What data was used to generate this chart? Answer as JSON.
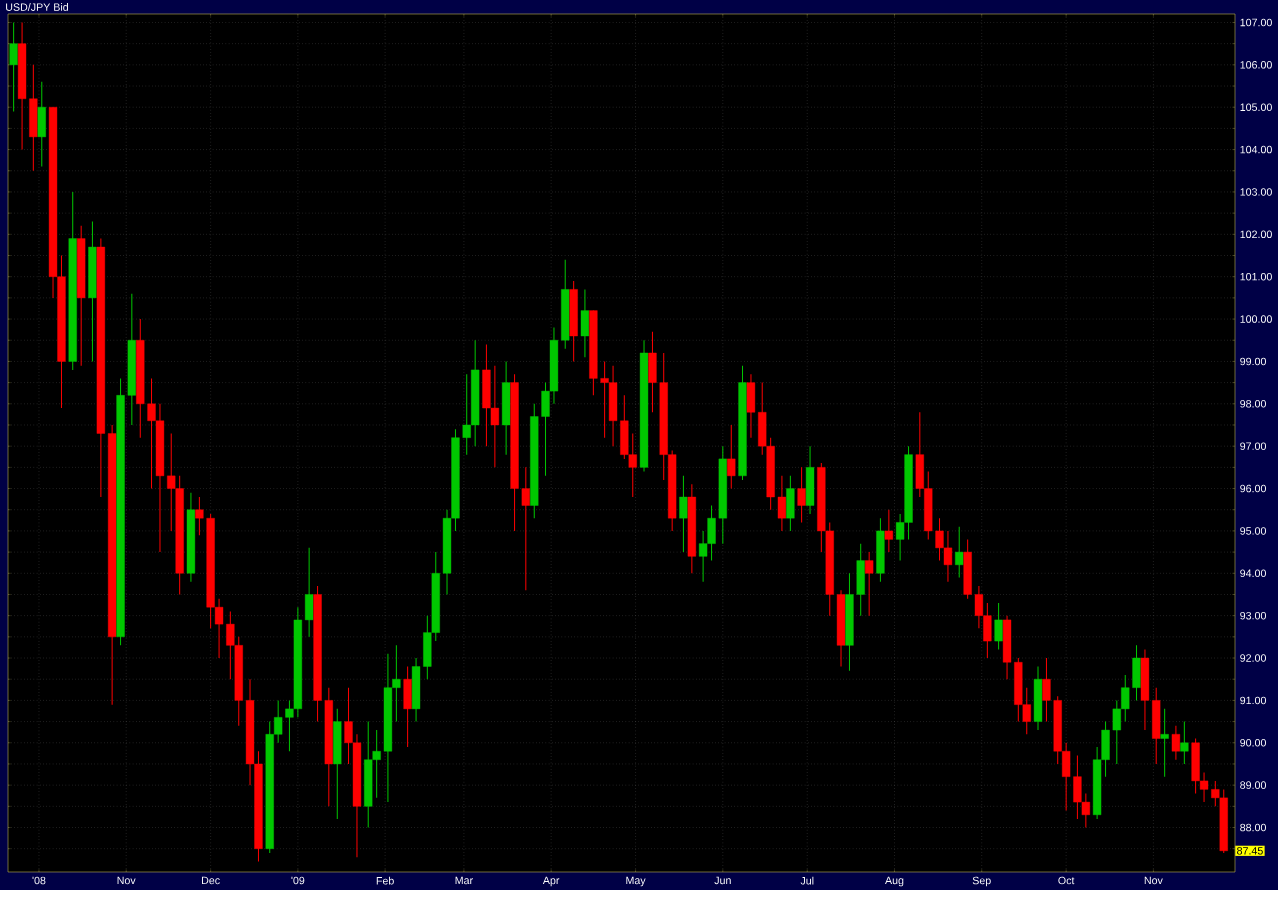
{
  "chart_data": {
    "type": "candlestick",
    "title": "USD/JPY Bid",
    "x": [
      "2008-09-22",
      "2008-09-25",
      "2008-09-29",
      "2008-10-02",
      "2008-10-06",
      "2008-10-09",
      "2008-10-13",
      "2008-10-16",
      "2008-10-20",
      "2008-10-23",
      "2008-10-27",
      "2008-10-30",
      "2008-11-03",
      "2008-11-06",
      "2008-11-10",
      "2008-11-13",
      "2008-11-17",
      "2008-11-20",
      "2008-11-24",
      "2008-11-27",
      "2008-12-01",
      "2008-12-04",
      "2008-12-08",
      "2008-12-11",
      "2008-12-15",
      "2008-12-18",
      "2008-12-22",
      "2008-12-25",
      "2008-12-29",
      "2009-01-01",
      "2009-01-05",
      "2009-01-08",
      "2009-01-12",
      "2009-01-15",
      "2009-01-19",
      "2009-01-22",
      "2009-01-26",
      "2009-01-29",
      "2009-02-02",
      "2009-02-05",
      "2009-02-09",
      "2009-02-12",
      "2009-02-16",
      "2009-02-19",
      "2009-02-23",
      "2009-02-26",
      "2009-03-02",
      "2009-03-05",
      "2009-03-09",
      "2009-03-12",
      "2009-03-16",
      "2009-03-19",
      "2009-03-23",
      "2009-03-26",
      "2009-03-30",
      "2009-04-02",
      "2009-04-06",
      "2009-04-09",
      "2009-04-13",
      "2009-04-16",
      "2009-04-20",
      "2009-04-23",
      "2009-04-27",
      "2009-04-30",
      "2009-05-04",
      "2009-05-07",
      "2009-05-11",
      "2009-05-14",
      "2009-05-18",
      "2009-05-21",
      "2009-05-25",
      "2009-05-28",
      "2009-06-01",
      "2009-06-04",
      "2009-06-08",
      "2009-06-11",
      "2009-06-15",
      "2009-06-18",
      "2009-06-22",
      "2009-06-25",
      "2009-06-29",
      "2009-07-02",
      "2009-07-06",
      "2009-07-09",
      "2009-07-13",
      "2009-07-16",
      "2009-07-20",
      "2009-07-23",
      "2009-07-27",
      "2009-07-30",
      "2009-08-03",
      "2009-08-06",
      "2009-08-10",
      "2009-08-13",
      "2009-08-17",
      "2009-08-20",
      "2009-08-24",
      "2009-08-27",
      "2009-08-31",
      "2009-09-03",
      "2009-09-07",
      "2009-09-10",
      "2009-09-14",
      "2009-09-17",
      "2009-09-21",
      "2009-09-24",
      "2009-09-28",
      "2009-10-01",
      "2009-10-05",
      "2009-10-08",
      "2009-10-12",
      "2009-10-15",
      "2009-10-19",
      "2009-10-22",
      "2009-10-26",
      "2009-10-29",
      "2009-11-02",
      "2009-11-05",
      "2009-11-09",
      "2009-11-12",
      "2009-11-16",
      "2009-11-19",
      "2009-11-23",
      "2009-11-26"
    ],
    "ohlc": [
      [
        106.0,
        107.0,
        104.9,
        106.5
      ],
      [
        106.5,
        107.0,
        104.0,
        105.2
      ],
      [
        105.2,
        106.0,
        103.5,
        104.3
      ],
      [
        104.3,
        105.6,
        103.6,
        105.0
      ],
      [
        105.0,
        105.0,
        100.5,
        101.0
      ],
      [
        101.0,
        101.5,
        97.9,
        99.0
      ],
      [
        99.0,
        103.0,
        98.8,
        101.9
      ],
      [
        101.9,
        102.2,
        98.9,
        100.5
      ],
      [
        100.5,
        102.3,
        99.0,
        101.7
      ],
      [
        101.7,
        101.9,
        95.8,
        97.3
      ],
      [
        97.3,
        97.5,
        90.9,
        92.5
      ],
      [
        92.5,
        98.6,
        92.3,
        98.2
      ],
      [
        98.2,
        100.6,
        97.5,
        99.5
      ],
      [
        99.5,
        100.0,
        97.2,
        98.0
      ],
      [
        98.0,
        98.6,
        96.0,
        97.6
      ],
      [
        97.6,
        98.0,
        94.5,
        96.3
      ],
      [
        96.3,
        97.3,
        95.0,
        96.0
      ],
      [
        96.0,
        96.3,
        93.5,
        94.0
      ],
      [
        94.0,
        95.9,
        93.8,
        95.5
      ],
      [
        95.5,
        95.8,
        94.9,
        95.3
      ],
      [
        95.3,
        95.4,
        92.7,
        93.2
      ],
      [
        93.2,
        93.4,
        92.0,
        92.8
      ],
      [
        92.8,
        93.1,
        91.5,
        92.3
      ],
      [
        92.3,
        92.5,
        90.4,
        91.0
      ],
      [
        91.0,
        91.5,
        89.0,
        89.5
      ],
      [
        89.5,
        89.8,
        87.2,
        87.5
      ],
      [
        87.5,
        90.5,
        87.4,
        90.2
      ],
      [
        90.2,
        91.0,
        90.0,
        90.6
      ],
      [
        90.6,
        91.0,
        89.8,
        90.8
      ],
      [
        90.8,
        93.2,
        90.6,
        92.9
      ],
      [
        92.9,
        94.6,
        92.5,
        93.5
      ],
      [
        93.5,
        93.7,
        90.5,
        91.0
      ],
      [
        91.0,
        91.3,
        88.5,
        89.5
      ],
      [
        89.5,
        90.8,
        88.2,
        90.5
      ],
      [
        90.5,
        91.3,
        89.5,
        90.0
      ],
      [
        90.0,
        90.2,
        87.3,
        88.5
      ],
      [
        88.5,
        90.5,
        88.0,
        89.6
      ],
      [
        89.6,
        90.3,
        88.7,
        89.8
      ],
      [
        89.8,
        92.1,
        88.6,
        91.3
      ],
      [
        91.3,
        92.3,
        90.5,
        91.5
      ],
      [
        91.5,
        91.8,
        89.9,
        90.8
      ],
      [
        90.8,
        92.0,
        90.5,
        91.8
      ],
      [
        91.8,
        93.0,
        91.5,
        92.6
      ],
      [
        92.6,
        94.5,
        92.4,
        94.0
      ],
      [
        94.0,
        95.5,
        93.5,
        95.3
      ],
      [
        95.3,
        97.4,
        95.0,
        97.2
      ],
      [
        97.2,
        98.7,
        96.8,
        97.5
      ],
      [
        97.5,
        99.5,
        97.0,
        98.8
      ],
      [
        98.8,
        99.4,
        97.0,
        97.9
      ],
      [
        97.9,
        98.9,
        96.5,
        97.5
      ],
      [
        97.5,
        99.0,
        96.8,
        98.5
      ],
      [
        98.5,
        98.7,
        95.0,
        96.0
      ],
      [
        96.0,
        96.5,
        93.6,
        95.6
      ],
      [
        95.6,
        98.0,
        95.3,
        97.7
      ],
      [
        97.7,
        98.5,
        96.3,
        98.3
      ],
      [
        98.3,
        99.8,
        98.0,
        99.5
      ],
      [
        99.5,
        101.4,
        99.3,
        100.7
      ],
      [
        100.7,
        100.9,
        99.0,
        99.6
      ],
      [
        99.6,
        100.7,
        99.1,
        100.2
      ],
      [
        100.2,
        100.2,
        98.2,
        98.6
      ],
      [
        98.6,
        99.0,
        97.2,
        98.5
      ],
      [
        98.5,
        98.9,
        97.0,
        97.6
      ],
      [
        97.6,
        98.2,
        96.7,
        96.8
      ],
      [
        96.8,
        97.3,
        95.8,
        96.5
      ],
      [
        96.5,
        99.5,
        96.4,
        99.2
      ],
      [
        99.2,
        99.7,
        97.8,
        98.5
      ],
      [
        98.5,
        99.2,
        96.2,
        96.8
      ],
      [
        96.8,
        96.9,
        95.0,
        95.3
      ],
      [
        95.3,
        96.3,
        94.5,
        95.8
      ],
      [
        95.8,
        96.1,
        94.0,
        94.4
      ],
      [
        94.4,
        95.0,
        93.8,
        94.7
      ],
      [
        94.7,
        95.6,
        94.3,
        95.3
      ],
      [
        95.3,
        97.0,
        94.7,
        96.7
      ],
      [
        96.7,
        97.5,
        96.0,
        96.3
      ],
      [
        96.3,
        98.9,
        96.2,
        98.5
      ],
      [
        98.5,
        98.7,
        97.2,
        97.8
      ],
      [
        97.8,
        98.5,
        96.8,
        97.0
      ],
      [
        97.0,
        97.2,
        95.5,
        95.8
      ],
      [
        95.8,
        96.3,
        95.0,
        95.3
      ],
      [
        95.3,
        96.3,
        95.0,
        96.0
      ],
      [
        96.0,
        96.5,
        95.2,
        95.6
      ],
      [
        95.6,
        97.0,
        95.4,
        96.5
      ],
      [
        96.5,
        96.6,
        94.5,
        95.0
      ],
      [
        95.0,
        95.2,
        93.0,
        93.5
      ],
      [
        93.5,
        93.6,
        91.8,
        92.3
      ],
      [
        92.3,
        94.0,
        91.7,
        93.5
      ],
      [
        93.5,
        94.7,
        93.0,
        94.3
      ],
      [
        94.3,
        94.5,
        93.0,
        94.0
      ],
      [
        94.0,
        95.3,
        93.8,
        95.0
      ],
      [
        95.0,
        95.5,
        94.5,
        94.8
      ],
      [
        94.8,
        95.4,
        94.3,
        95.2
      ],
      [
        95.2,
        97.0,
        94.8,
        96.8
      ],
      [
        96.8,
        97.8,
        95.8,
        96.0
      ],
      [
        96.0,
        96.4,
        94.8,
        95.0
      ],
      [
        95.0,
        95.3,
        94.3,
        94.6
      ],
      [
        94.6,
        95.0,
        93.8,
        94.2
      ],
      [
        94.2,
        95.1,
        93.9,
        94.5
      ],
      [
        94.5,
        94.8,
        93.4,
        93.5
      ],
      [
        93.5,
        93.7,
        92.7,
        93.0
      ],
      [
        93.0,
        93.3,
        92.0,
        92.4
      ],
      [
        92.4,
        93.3,
        92.2,
        92.9
      ],
      [
        92.9,
        93.0,
        91.5,
        91.9
      ],
      [
        91.9,
        92.0,
        90.5,
        90.9
      ],
      [
        90.9,
        91.3,
        90.2,
        90.5
      ],
      [
        90.5,
        91.8,
        90.3,
        91.5
      ],
      [
        91.5,
        92.0,
        90.5,
        91.0
      ],
      [
        91.0,
        91.1,
        89.5,
        89.8
      ],
      [
        89.8,
        90.0,
        88.4,
        89.2
      ],
      [
        89.2,
        89.7,
        88.2,
        88.6
      ],
      [
        88.6,
        88.8,
        88.0,
        88.3
      ],
      [
        88.3,
        89.9,
        88.2,
        89.6
      ],
      [
        89.6,
        90.5,
        89.2,
        90.3
      ],
      [
        90.3,
        91.0,
        89.5,
        90.8
      ],
      [
        90.8,
        91.6,
        90.5,
        91.3
      ],
      [
        91.3,
        92.3,
        91.0,
        92.0
      ],
      [
        92.0,
        92.2,
        90.3,
        91.0
      ],
      [
        91.0,
        91.3,
        89.5,
        90.1
      ],
      [
        90.1,
        90.8,
        89.2,
        90.2
      ],
      [
        90.2,
        90.4,
        89.6,
        89.8
      ],
      [
        89.8,
        90.5,
        89.5,
        90.0
      ],
      [
        90.0,
        90.1,
        88.8,
        89.1
      ],
      [
        89.1,
        89.3,
        88.6,
        88.9
      ],
      [
        88.9,
        89.1,
        88.5,
        88.7
      ],
      [
        88.7,
        88.9,
        87.4,
        87.45
      ]
    ],
    "colors": [
      "#00c800",
      "#ff0000",
      "#ff0000",
      "#00c800",
      "#ff0000",
      "#ff0000",
      "#00c800",
      "#ff0000",
      "#00c800",
      "#ff0000",
      "#ff0000",
      "#00c800",
      "#00c800",
      "#ff0000",
      "#ff0000",
      "#ff0000",
      "#ff0000",
      "#ff0000",
      "#00c800",
      "#ff0000",
      "#ff0000",
      "#ff0000",
      "#ff0000",
      "#ff0000",
      "#ff0000",
      "#ff0000",
      "#00c800",
      "#00c800",
      "#00c800",
      "#00c800",
      "#00c800",
      "#ff0000",
      "#ff0000",
      "#00c800",
      "#ff0000",
      "#ff0000",
      "#00c800",
      "#00c800",
      "#00c800",
      "#00c800",
      "#ff0000",
      "#00c800",
      "#00c800",
      "#00c800",
      "#00c800",
      "#00c800",
      "#00c800",
      "#00c800",
      "#ff0000",
      "#ff0000",
      "#00c800",
      "#ff0000",
      "#ff0000",
      "#00c800",
      "#00c800",
      "#00c800",
      "#00c800",
      "#ff0000",
      "#00c800",
      "#ff0000",
      "#ff0000",
      "#ff0000",
      "#ff0000",
      "#ff0000",
      "#00c800",
      "#ff0000",
      "#ff0000",
      "#ff0000",
      "#00c800",
      "#ff0000",
      "#00c800",
      "#00c800",
      "#00c800",
      "#ff0000",
      "#00c800",
      "#ff0000",
      "#ff0000",
      "#ff0000",
      "#ff0000",
      "#00c800",
      "#ff0000",
      "#00c800",
      "#ff0000",
      "#ff0000",
      "#ff0000",
      "#00c800",
      "#00c800",
      "#ff0000",
      "#00c800",
      "#ff0000",
      "#00c800",
      "#00c800",
      "#ff0000",
      "#ff0000",
      "#ff0000",
      "#ff0000",
      "#00c800",
      "#ff0000",
      "#ff0000",
      "#ff0000",
      "#00c800",
      "#ff0000",
      "#ff0000",
      "#ff0000",
      "#00c800",
      "#ff0000",
      "#ff0000",
      "#ff0000",
      "#ff0000",
      "#ff0000",
      "#00c800",
      "#00c800",
      "#00c800",
      "#00c800",
      "#00c800",
      "#ff0000",
      "#ff0000",
      "#00c800",
      "#ff0000",
      "#00c800",
      "#ff0000",
      "#ff0000",
      "#ff0000",
      "#ff0000"
    ],
    "xlim": [
      "2008-09-20",
      "2009-11-30"
    ],
    "xticks": [
      {
        "value": "2008-10-01",
        "label": "'08"
      },
      {
        "value": "2008-11-01",
        "label": "Nov"
      },
      {
        "value": "2008-12-01",
        "label": "Dec"
      },
      {
        "value": "2009-01-01",
        "label": "'09"
      },
      {
        "value": "2009-02-01",
        "label": "Feb"
      },
      {
        "value": "2009-03-01",
        "label": "Mar"
      },
      {
        "value": "2009-04-01",
        "label": "Apr"
      },
      {
        "value": "2009-05-01",
        "label": "May"
      },
      {
        "value": "2009-06-01",
        "label": "Jun"
      },
      {
        "value": "2009-07-01",
        "label": "Jul"
      },
      {
        "value": "2009-08-01",
        "label": "Aug"
      },
      {
        "value": "2009-09-01",
        "label": "Sep"
      },
      {
        "value": "2009-10-01",
        "label": "Oct"
      },
      {
        "value": "2009-11-01",
        "label": "Nov"
      }
    ],
    "ylim": [
      86.95,
      107.2
    ],
    "yticks": [
      {
        "value": 87.5,
        "label": null
      },
      {
        "value": 88,
        "label": "88.00"
      },
      {
        "value": 88.5,
        "label": null
      },
      {
        "value": 89,
        "label": "89.00"
      },
      {
        "value": 89.5,
        "label": null
      },
      {
        "value": 90,
        "label": "90.00"
      },
      {
        "value": 90.5,
        "label": null
      },
      {
        "value": 91,
        "label": "91.00"
      },
      {
        "value": 91.5,
        "label": null
      },
      {
        "value": 92,
        "label": "92.00"
      },
      {
        "value": 92.5,
        "label": null
      },
      {
        "value": 93,
        "label": "93.00"
      },
      {
        "value": 93.5,
        "label": null
      },
      {
        "value": 94,
        "label": "94.00"
      },
      {
        "value": 94.5,
        "label": null
      },
      {
        "value": 95,
        "label": "95.00"
      },
      {
        "value": 95.5,
        "label": null
      },
      {
        "value": 96,
        "label": "96.00"
      },
      {
        "value": 96.5,
        "label": null
      },
      {
        "value": 97,
        "label": "97.00"
      },
      {
        "value": 97.5,
        "label": null
      },
      {
        "value": 98,
        "label": "98.00"
      },
      {
        "value": 98.5,
        "label": null
      },
      {
        "value": 99,
        "label": "99.00"
      },
      {
        "value": 99.5,
        "label": null
      },
      {
        "value": 100,
        "label": "100.00"
      },
      {
        "value": 100.5,
        "label": null
      },
      {
        "value": 101,
        "label": "101.00"
      },
      {
        "value": 101.5,
        "label": null
      },
      {
        "value": 102,
        "label": "102.00"
      },
      {
        "value": 102.5,
        "label": null
      },
      {
        "value": 103,
        "label": "103.00"
      },
      {
        "value": 103.5,
        "label": null
      },
      {
        "value": 104,
        "label": "104.00"
      },
      {
        "value": 104.5,
        "label": null
      },
      {
        "value": 105,
        "label": "105.00"
      },
      {
        "value": 105.5,
        "label": null
      },
      {
        "value": 106,
        "label": "106.00"
      },
      {
        "value": 106.5,
        "label": null
      },
      {
        "value": 107,
        "label": "107.00"
      }
    ],
    "grid": true,
    "annotations": [
      {
        "text": "87.45",
        "y": 87.45
      }
    ]
  }
}
